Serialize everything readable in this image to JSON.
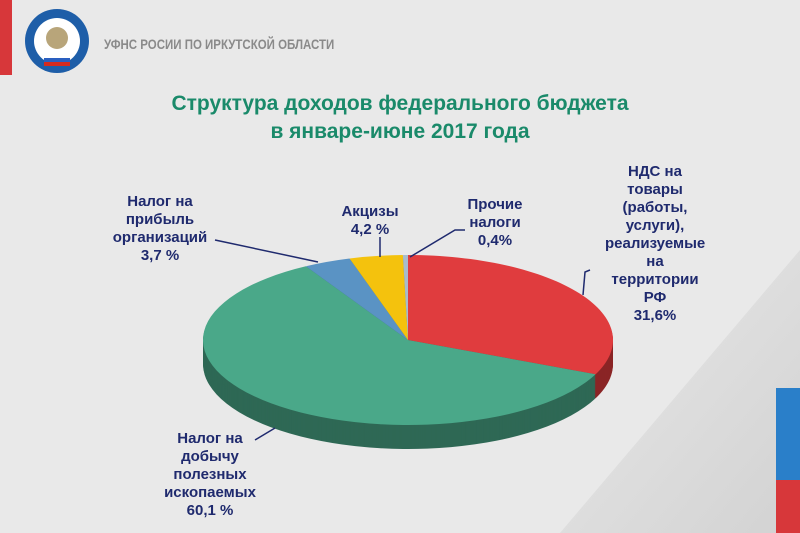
{
  "header": {
    "org_name": "УФНС РОСИИ ПО ИРКУТСКОЙ ОБЛАСТИ",
    "logo_text": "ФЕДЕРАЛЬНАЯ НАЛОГОВАЯ СЛУЖБА"
  },
  "chart_data": {
    "type": "pie",
    "title": [
      "Структура  доходов федерального бюджета",
      "в январе-июне 2017 года"
    ],
    "slices": [
      {
        "label": "НДС на товары (работы, услуги), реализуемые на территории РФ",
        "value": 31.6,
        "value_label": "31,6%",
        "color": "#e03c3e"
      },
      {
        "label": "Налог на добычу полезных ископаемых",
        "value": 60.1,
        "value_label": "60,1 %",
        "color": "#4aa889"
      },
      {
        "label": "Налог на прибыль организаций",
        "value": 3.7,
        "value_label": "3,7 %",
        "color": "#5a93c4"
      },
      {
        "label": "Акцизы",
        "value": 4.2,
        "value_label": "4,2 %",
        "color": "#f4c20d"
      },
      {
        "label": "Прочие налоги",
        "value": 0.4,
        "value_label": "0,4%",
        "color": "#a8bccc"
      }
    ]
  }
}
